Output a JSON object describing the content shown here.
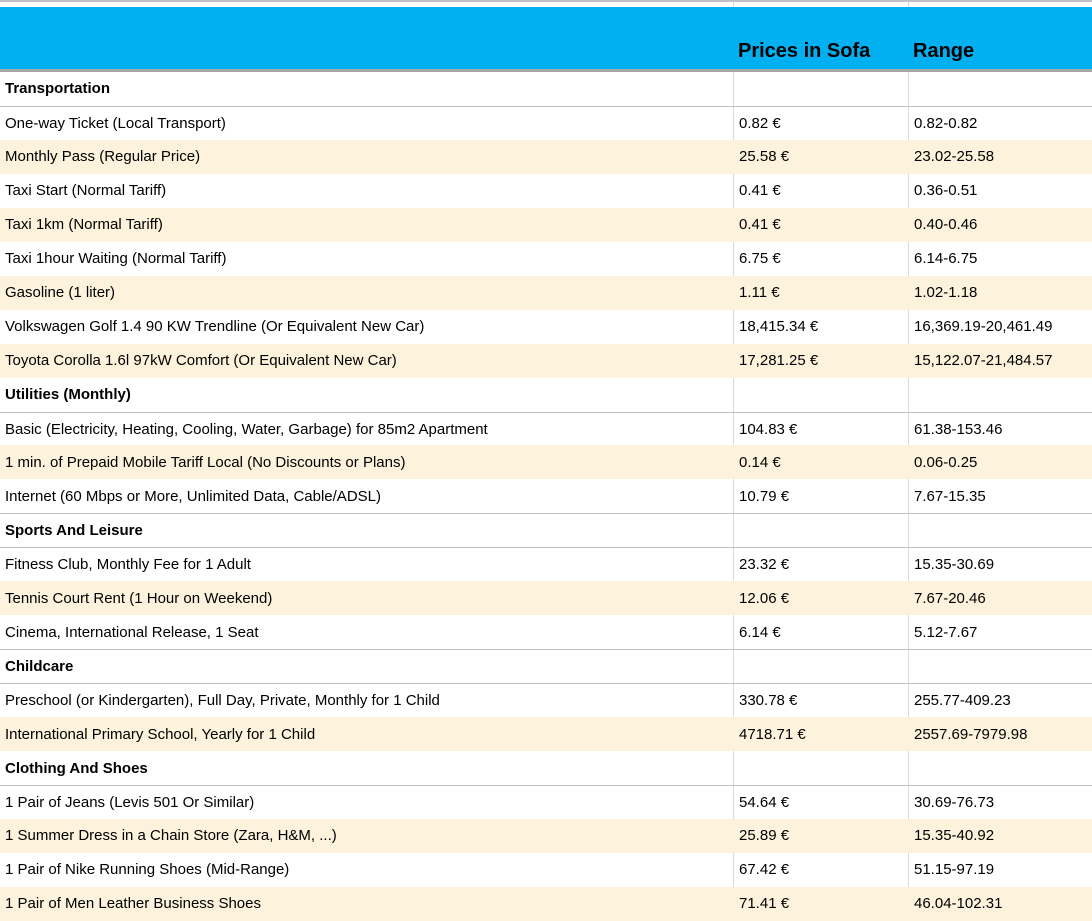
{
  "colors": {
    "header_bg": "#00B0F0",
    "row_cream": "#FDF3DC",
    "grid_line": "#D9D9D9",
    "band_border": "#A6A6A6"
  },
  "table": {
    "columns": {
      "price_header": "Prices in Sofa",
      "range_header": "Range"
    },
    "sections": [
      {
        "label": "Transportation",
        "items": [
          {
            "label": "One-way Ticket (Local Transport)",
            "price": "0.82 €",
            "range": "0.82-0.82"
          },
          {
            "label": "Monthly Pass (Regular Price)",
            "price": "25.58 €",
            "range": "23.02-25.58"
          },
          {
            "label": "Taxi Start (Normal Tariff)",
            "price": "0.41 €",
            "range": "0.36-0.51"
          },
          {
            "label": "Taxi 1km (Normal Tariff)",
            "price": "0.41 €",
            "range": "0.40-0.46"
          },
          {
            "label": "Taxi 1hour Waiting (Normal Tariff)",
            "price": "6.75 €",
            "range": "6.14-6.75"
          },
          {
            "label": "Gasoline (1 liter)",
            "price": "1.11 €",
            "range": "1.02-1.18"
          },
          {
            "label": "Volkswagen Golf 1.4 90 KW Trendline (Or Equivalent New Car)",
            "price": "18,415.34 €",
            "range": "16,369.19-20,461.49"
          },
          {
            "label": "Toyota Corolla 1.6l 97kW Comfort (Or Equivalent New Car)",
            "price": "17,281.25 €",
            "range": "15,122.07-21,484.57"
          }
        ]
      },
      {
        "label": "Utilities (Monthly)",
        "items": [
          {
            "label": "Basic (Electricity, Heating, Cooling, Water, Garbage) for 85m2 Apartment",
            "price": "104.83 €",
            "range": "61.38-153.46"
          },
          {
            "label": "1 min. of Prepaid Mobile Tariff Local (No Discounts or Plans)",
            "price": "0.14 €",
            "range": "0.06-0.25"
          },
          {
            "label": "Internet (60 Mbps or More, Unlimited Data, Cable/ADSL)",
            "price": "10.79 €",
            "range": "7.67-15.35"
          }
        ]
      },
      {
        "label": "Sports And Leisure",
        "items": [
          {
            "label": "Fitness Club, Monthly Fee for 1 Adult",
            "price": "23.32 €",
            "range": "15.35-30.69"
          },
          {
            "label": "Tennis Court Rent (1 Hour on Weekend)",
            "price": "12.06 €",
            "range": "7.67-20.46"
          },
          {
            "label": "Cinema, International Release, 1 Seat",
            "price": "6.14 €",
            "range": "5.12-7.67"
          }
        ]
      },
      {
        "label": "Childcare",
        "items": [
          {
            "label": "Preschool (or Kindergarten), Full Day, Private, Monthly for 1 Child",
            "price": "330.78 €",
            "range": "255.77-409.23"
          },
          {
            "label": "International Primary School, Yearly for 1 Child",
            "price": "4718.71 €",
            "range": "2557.69-7979.98"
          }
        ]
      },
      {
        "label": "Clothing And Shoes",
        "items": [
          {
            "label": "1 Pair of Jeans (Levis 501 Or Similar)",
            "price": "54.64 €",
            "range": "30.69-76.73"
          },
          {
            "label": "1 Summer Dress in a Chain Store (Zara, H&M, ...)",
            "price": "25.89 €",
            "range": "15.35-40.92"
          },
          {
            "label": "1 Pair of Nike Running Shoes (Mid-Range)",
            "price": "67.42 €",
            "range": "51.15-97.19"
          },
          {
            "label": "1 Pair of Men Leather Business Shoes",
            "price": "71.41 €",
            "range": "46.04-102.31"
          }
        ]
      }
    ]
  }
}
